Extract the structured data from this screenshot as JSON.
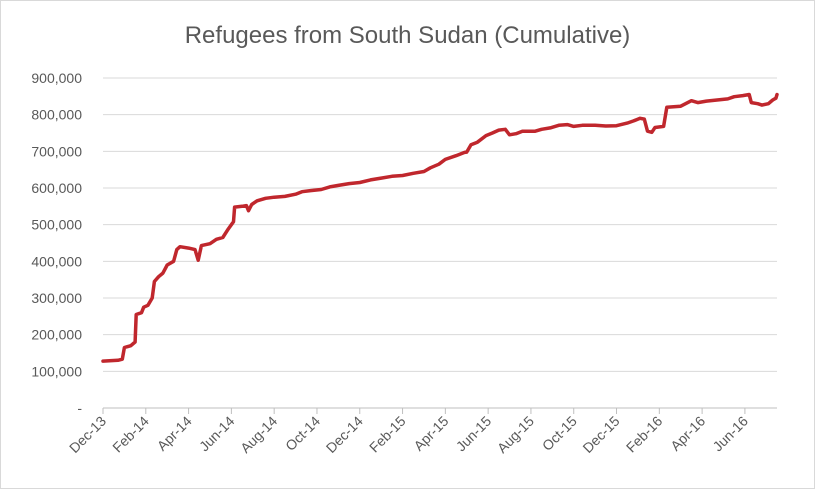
{
  "chart_data": {
    "type": "line",
    "title": "Refugees from South Sudan (Cumulative)",
    "xlabel": "",
    "ylabel": "",
    "ylim": [
      0,
      900000
    ],
    "yticks": [
      {
        "value": 0,
        "label": "-"
      },
      {
        "value": 100000,
        "label": "100,000"
      },
      {
        "value": 200000,
        "label": "200,000"
      },
      {
        "value": 300000,
        "label": "300,000"
      },
      {
        "value": 400000,
        "label": "400,000"
      },
      {
        "value": 500000,
        "label": "500,000"
      },
      {
        "value": 600000,
        "label": "600,000"
      },
      {
        "value": 700000,
        "label": "700,000"
      },
      {
        "value": 800000,
        "label": "800,000"
      },
      {
        "value": 900000,
        "label": "900,000"
      }
    ],
    "xlim": [
      0,
      31.5
    ],
    "xticks": [
      {
        "pos": 0,
        "label": "Dec-13"
      },
      {
        "pos": 2,
        "label": "Feb-14"
      },
      {
        "pos": 4,
        "label": "Apr-14"
      },
      {
        "pos": 6,
        "label": "Jun-14"
      },
      {
        "pos": 8,
        "label": "Aug-14"
      },
      {
        "pos": 10,
        "label": "Oct-14"
      },
      {
        "pos": 12,
        "label": "Dec-14"
      },
      {
        "pos": 14,
        "label": "Feb-15"
      },
      {
        "pos": 16,
        "label": "Apr-15"
      },
      {
        "pos": 18,
        "label": "Jun-15"
      },
      {
        "pos": 20,
        "label": "Aug-15"
      },
      {
        "pos": 22,
        "label": "Oct-15"
      },
      {
        "pos": 24,
        "label": "Dec-15"
      },
      {
        "pos": 26,
        "label": "Feb-16"
      },
      {
        "pos": 28,
        "label": "Apr-16"
      },
      {
        "pos": 30,
        "label": "Jun-16"
      }
    ],
    "series": [
      {
        "name": "Refugees from South Sudan (Cumulative)",
        "color": "#c0272d",
        "x_unit": "months since Dec-13",
        "points": [
          [
            0,
            128000
          ],
          [
            0.7,
            130000
          ],
          [
            0.9,
            133000
          ],
          [
            1.0,
            165000
          ],
          [
            1.3,
            170000
          ],
          [
            1.5,
            180000
          ],
          [
            1.55,
            255000
          ],
          [
            1.8,
            260000
          ],
          [
            1.9,
            275000
          ],
          [
            2.1,
            280000
          ],
          [
            2.3,
            300000
          ],
          [
            2.4,
            345000
          ],
          [
            2.6,
            358000
          ],
          [
            2.8,
            368000
          ],
          [
            3.0,
            390000
          ],
          [
            3.3,
            400000
          ],
          [
            3.45,
            432000
          ],
          [
            3.6,
            440000
          ],
          [
            4.0,
            436000
          ],
          [
            4.3,
            432000
          ],
          [
            4.45,
            403000
          ],
          [
            4.6,
            443000
          ],
          [
            5.0,
            448000
          ],
          [
            5.3,
            460000
          ],
          [
            5.6,
            465000
          ],
          [
            5.85,
            488000
          ],
          [
            6.1,
            508000
          ],
          [
            6.15,
            548000
          ],
          [
            6.5,
            550000
          ],
          [
            6.7,
            552000
          ],
          [
            6.8,
            538000
          ],
          [
            6.95,
            555000
          ],
          [
            7.2,
            565000
          ],
          [
            7.6,
            572000
          ],
          [
            8.0,
            575000
          ],
          [
            8.5,
            577000
          ],
          [
            9.0,
            583000
          ],
          [
            9.3,
            590000
          ],
          [
            9.7,
            593000
          ],
          [
            10.2,
            596000
          ],
          [
            10.6,
            603000
          ],
          [
            11.0,
            607000
          ],
          [
            11.5,
            612000
          ],
          [
            12.0,
            615000
          ],
          [
            12.5,
            622000
          ],
          [
            13.0,
            627000
          ],
          [
            13.5,
            632000
          ],
          [
            14.0,
            634000
          ],
          [
            14.5,
            640000
          ],
          [
            15.0,
            645000
          ],
          [
            15.3,
            655000
          ],
          [
            15.7,
            665000
          ],
          [
            16.0,
            678000
          ],
          [
            16.5,
            688000
          ],
          [
            16.9,
            697000
          ],
          [
            17.0,
            698000
          ],
          [
            17.2,
            718000
          ],
          [
            17.5,
            725000
          ],
          [
            17.9,
            743000
          ],
          [
            18.2,
            750000
          ],
          [
            18.5,
            758000
          ],
          [
            18.8,
            760000
          ],
          [
            19.0,
            745000
          ],
          [
            19.3,
            748000
          ],
          [
            19.6,
            755000
          ],
          [
            20.2,
            755000
          ],
          [
            20.5,
            760000
          ],
          [
            20.9,
            764000
          ],
          [
            21.3,
            771000
          ],
          [
            21.7,
            773000
          ],
          [
            22.0,
            768000
          ],
          [
            22.4,
            771000
          ],
          [
            23.0,
            771000
          ],
          [
            23.5,
            769000
          ],
          [
            24.0,
            770000
          ],
          [
            24.5,
            777000
          ],
          [
            24.8,
            783000
          ],
          [
            25.1,
            790000
          ],
          [
            25.3,
            788000
          ],
          [
            25.45,
            755000
          ],
          [
            25.65,
            752000
          ],
          [
            25.8,
            765000
          ],
          [
            26.2,
            768000
          ],
          [
            26.35,
            820000
          ],
          [
            27.0,
            823000
          ],
          [
            27.5,
            838000
          ],
          [
            27.8,
            833000
          ],
          [
            28.2,
            837000
          ],
          [
            28.7,
            840000
          ],
          [
            29.2,
            843000
          ],
          [
            29.5,
            849000
          ],
          [
            29.9,
            852000
          ],
          [
            30.2,
            855000
          ],
          [
            30.3,
            833000
          ],
          [
            30.6,
            830000
          ],
          [
            30.8,
            826000
          ],
          [
            31.1,
            830000
          ],
          [
            31.3,
            840000
          ],
          [
            31.45,
            845000
          ],
          [
            31.5,
            855000
          ]
        ]
      }
    ]
  }
}
